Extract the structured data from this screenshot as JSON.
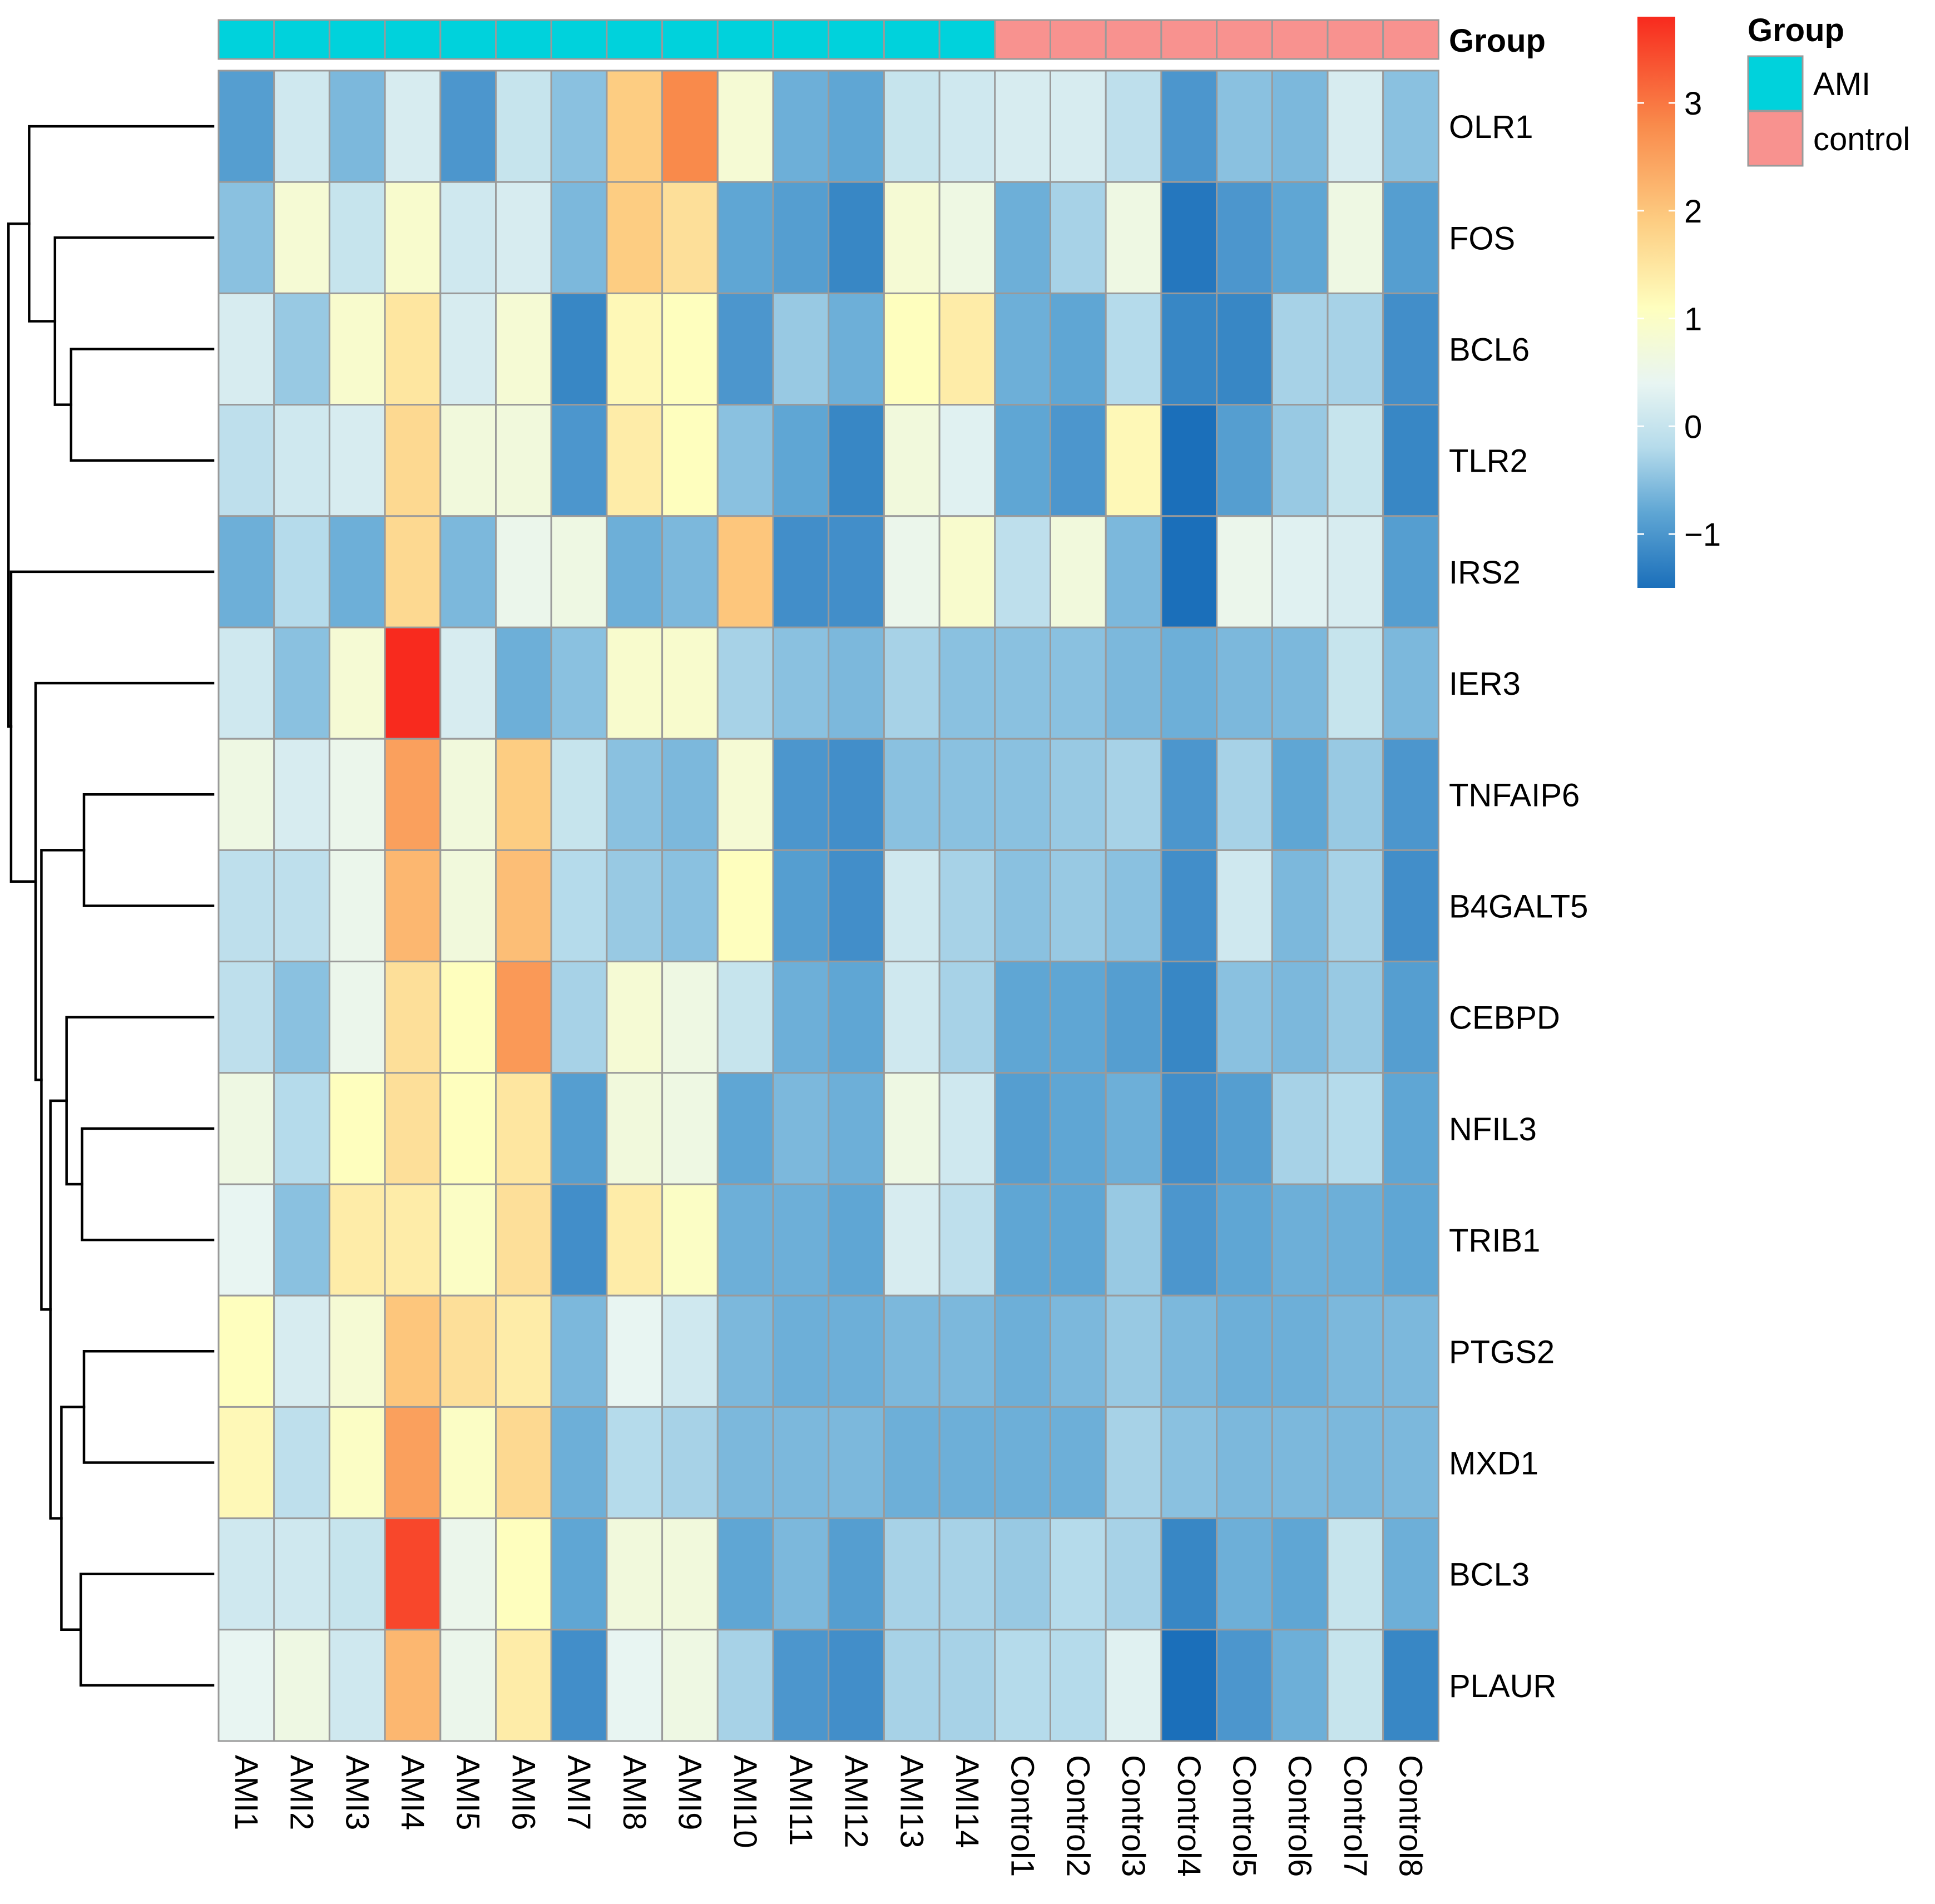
{
  "chart_data": {
    "type": "heatmap",
    "annotation_title": "Group",
    "rows": [
      "OLR1",
      "FOS",
      "BCL6",
      "TLR2",
      "IRS2",
      "IER3",
      "TNFAIP6",
      "B4GALT5",
      "CEBPD",
      "NFIL3",
      "TRIB1",
      "PTGS2",
      "MXD1",
      "BCL3",
      "PLAUR"
    ],
    "columns": [
      "AMI1",
      "AMI2",
      "AMI3",
      "AMI4",
      "AMI5",
      "AMI6",
      "AMI7",
      "AMI8",
      "AMI9",
      "AMI10",
      "AMI11",
      "AMI12",
      "AMI13",
      "AMI14",
      "Control1",
      "Control2",
      "Control3",
      "Control4",
      "Control5",
      "Control6",
      "Control7",
      "Control8"
    ],
    "column_groups": [
      "AMI",
      "AMI",
      "AMI",
      "AMI",
      "AMI",
      "AMI",
      "AMI",
      "AMI",
      "AMI",
      "AMI",
      "AMI",
      "AMI",
      "AMI",
      "AMI",
      "control",
      "control",
      "control",
      "control",
      "control",
      "control",
      "control",
      "control"
    ],
    "values": [
      [
        -0.9,
        0.1,
        -0.6,
        0.2,
        -1.0,
        0.0,
        -0.5,
        1.9,
        2.8,
        0.8,
        -0.7,
        -0.8,
        0.0,
        0.1,
        0.2,
        0.2,
        -0.1,
        -1.0,
        -0.5,
        -0.6,
        0.2,
        -0.5
      ],
      [
        -0.5,
        0.8,
        0.0,
        0.9,
        0.1,
        0.2,
        -0.6,
        1.9,
        1.6,
        -0.8,
        -0.9,
        -1.2,
        0.8,
        0.6,
        -0.7,
        -0.3,
        0.6,
        -1.4,
        -1.0,
        -0.8,
        0.6,
        -0.9
      ],
      [
        0.2,
        -0.4,
        0.9,
        1.5,
        0.2,
        0.8,
        -1.2,
        1.2,
        1.1,
        -1.0,
        -0.4,
        -0.7,
        1.1,
        1.4,
        -0.7,
        -0.8,
        -0.2,
        -1.2,
        -1.2,
        -0.3,
        -0.3,
        -1.1
      ],
      [
        -0.1,
        0.1,
        0.2,
        1.7,
        0.7,
        0.7,
        -1.0,
        1.4,
        1.1,
        -0.5,
        -0.8,
        -1.2,
        0.7,
        0.3,
        -0.8,
        -1.0,
        1.2,
        -1.5,
        -0.9,
        -0.4,
        0.0,
        -1.2
      ],
      [
        -0.7,
        -0.2,
        -0.7,
        1.7,
        -0.6,
        0.5,
        0.6,
        -0.7,
        -0.6,
        2.0,
        -1.1,
        -1.1,
        0.5,
        0.9,
        -0.1,
        0.7,
        -0.6,
        -1.5,
        0.5,
        0.3,
        0.2,
        -0.9
      ],
      [
        0.1,
        -0.5,
        0.8,
        3.8,
        0.2,
        -0.7,
        -0.5,
        0.9,
        0.9,
        -0.3,
        -0.5,
        -0.6,
        -0.3,
        -0.5,
        -0.5,
        -0.5,
        -0.6,
        -0.7,
        -0.6,
        -0.6,
        0.0,
        -0.6
      ],
      [
        0.6,
        0.2,
        0.5,
        2.5,
        0.7,
        1.9,
        0.0,
        -0.5,
        -0.6,
        0.8,
        -1.0,
        -1.1,
        -0.5,
        -0.5,
        -0.5,
        -0.4,
        -0.3,
        -1.0,
        -0.3,
        -0.8,
        -0.4,
        -1.0
      ],
      [
        -0.1,
        -0.1,
        0.5,
        2.2,
        0.7,
        2.1,
        -0.2,
        -0.4,
        -0.5,
        1.1,
        -0.9,
        -1.1,
        0.1,
        -0.3,
        -0.5,
        -0.4,
        -0.5,
        -1.1,
        0.1,
        -0.6,
        -0.3,
        -1.1
      ],
      [
        -0.1,
        -0.5,
        0.5,
        1.6,
        1.1,
        2.6,
        -0.3,
        0.8,
        0.6,
        0.0,
        -0.7,
        -0.8,
        0.1,
        -0.3,
        -0.8,
        -0.8,
        -0.9,
        -1.2,
        -0.5,
        -0.6,
        -0.4,
        -0.9
      ],
      [
        0.6,
        -0.2,
        1.1,
        1.6,
        1.1,
        1.5,
        -0.9,
        0.7,
        0.6,
        -0.8,
        -0.6,
        -0.7,
        0.6,
        0.1,
        -0.9,
        -0.8,
        -0.7,
        -1.1,
        -0.9,
        -0.3,
        -0.2,
        -0.8
      ],
      [
        0.4,
        -0.5,
        1.4,
        1.4,
        1.0,
        1.6,
        -1.1,
        1.4,
        1.0,
        -0.7,
        -0.7,
        -0.8,
        0.2,
        -0.1,
        -0.8,
        -0.8,
        -0.4,
        -1.0,
        -0.8,
        -0.7,
        -0.7,
        -0.8
      ],
      [
        1.1,
        0.2,
        0.8,
        2.0,
        1.6,
        1.4,
        -0.6,
        0.4,
        0.1,
        -0.6,
        -0.7,
        -0.7,
        -0.6,
        -0.6,
        -0.7,
        -0.6,
        -0.4,
        -0.6,
        -0.7,
        -0.7,
        -0.6,
        -0.6
      ],
      [
        1.2,
        -0.1,
        1.0,
        2.5,
        1.0,
        1.7,
        -0.7,
        -0.2,
        -0.3,
        -0.6,
        -0.6,
        -0.6,
        -0.7,
        -0.7,
        -0.7,
        -0.7,
        -0.3,
        -0.5,
        -0.6,
        -0.6,
        -0.6,
        -0.6
      ],
      [
        0.1,
        0.1,
        0.0,
        3.5,
        0.5,
        1.1,
        -0.8,
        0.7,
        0.7,
        -0.8,
        -0.6,
        -0.9,
        -0.3,
        -0.3,
        -0.4,
        -0.2,
        -0.3,
        -1.2,
        -0.7,
        -0.8,
        0.0,
        -0.7
      ],
      [
        0.4,
        0.6,
        0.1,
        2.2,
        0.5,
        1.4,
        -1.1,
        0.4,
        0.6,
        -0.3,
        -1.0,
        -1.1,
        -0.3,
        -0.3,
        -0.2,
        -0.2,
        0.3,
        -1.5,
        -1.0,
        -0.7,
        0.0,
        -1.2
      ]
    ],
    "color_scale": {
      "min": -1.5,
      "max": 3.8,
      "stops": [
        {
          "value": -1.5,
          "color": "#1b6fba"
        },
        {
          "value": -0.8,
          "color": "#5fa6d4"
        },
        {
          "value": -0.2,
          "color": "#b5dbeb"
        },
        {
          "value": 0.4,
          "color": "#e8f5f2"
        },
        {
          "value": 1.1,
          "color": "#fefebe"
        },
        {
          "value": 1.9,
          "color": "#fdcd82"
        },
        {
          "value": 2.8,
          "color": "#f98a4b"
        },
        {
          "value": 3.8,
          "color": "#f82a1e"
        }
      ],
      "ticks": [
        3,
        2,
        1,
        0,
        -1
      ],
      "tick_labels": [
        "3",
        "2",
        "1",
        "0",
        "−1"
      ]
    },
    "legend": {
      "title": "Group",
      "items": [
        {
          "label": "AMI",
          "color": "#00d2dc"
        },
        {
          "label": "control",
          "color": "#f8928f"
        }
      ]
    },
    "row_dendrogram": true,
    "grid": true
  }
}
